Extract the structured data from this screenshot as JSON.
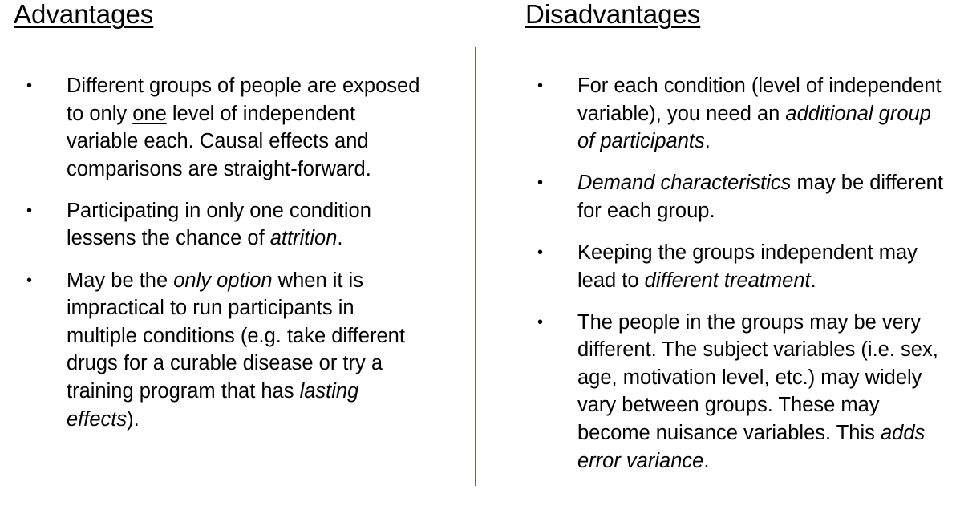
{
  "advantages": {
    "heading": "Advantages",
    "items": [
      {
        "segments": [
          {
            "text": "Different groups of people are exposed to only ",
            "style": "normal"
          },
          {
            "text": "one",
            "style": "underline"
          },
          {
            "text": " level of independent variable each. Causal effects and comparisons are straight-forward.",
            "style": "normal"
          }
        ]
      },
      {
        "segments": [
          {
            "text": "Participating in only one condition lessens the chance of ",
            "style": "normal"
          },
          {
            "text": "attrition",
            "style": "italic"
          },
          {
            "text": ".",
            "style": "normal"
          }
        ]
      },
      {
        "segments": [
          {
            "text": "May be the ",
            "style": "normal"
          },
          {
            "text": "only option",
            "style": "italic"
          },
          {
            "text": " when it is impractical to run participants in multiple conditions (e.g. take different drugs for a curable disease or try a training program that has ",
            "style": "normal"
          },
          {
            "text": "lasting effects",
            "style": "italic"
          },
          {
            "text": ").",
            "style": "normal"
          }
        ]
      }
    ]
  },
  "disadvantages": {
    "heading": "Disadvantages",
    "items": [
      {
        "segments": [
          {
            "text": "For each condition (level of independent variable), you need an ",
            "style": "normal"
          },
          {
            "text": "additional group of participants",
            "style": "italic"
          },
          {
            "text": ".",
            "style": "normal"
          }
        ]
      },
      {
        "segments": [
          {
            "text": "Demand characteristics",
            "style": "italic"
          },
          {
            "text": " may be different for each group.",
            "style": "normal"
          }
        ]
      },
      {
        "segments": [
          {
            "text": "Keeping the groups independent may lead to ",
            "style": "normal"
          },
          {
            "text": "different treatment",
            "style": "italic"
          },
          {
            "text": ".",
            "style": "normal"
          }
        ]
      },
      {
        "segments": [
          {
            "text": "The people in the groups may be very different. The subject variables (i.e. sex, age, motivation level, etc.) may widely vary between groups.  These may become nuisance variables. This ",
            "style": "normal"
          },
          {
            "text": "adds error variance",
            "style": "italic"
          },
          {
            "text": ".",
            "style": "normal"
          }
        ]
      }
    ]
  },
  "bullet_glyph": "•",
  "divider_color": "#6b6b4a"
}
